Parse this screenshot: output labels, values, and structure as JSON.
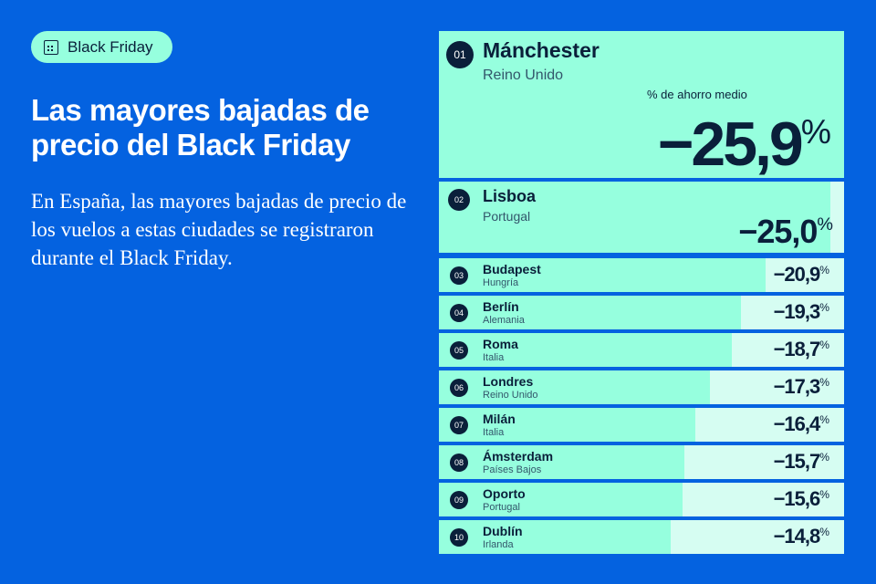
{
  "tag": {
    "label": "Black Friday",
    "icon": "calendar-icon"
  },
  "title": "Las mayores bajadas de precio del Black Friday",
  "description": "En España, las mayores bajadas de precio de los vuelos a estas ciudades se registraron durante el Black Friday.",
  "colors": {
    "background": "#0462e0",
    "bar": "#96ffde",
    "track": "#d6fdf2",
    "text": "#0a1f3a"
  },
  "chart_data": {
    "type": "bar",
    "orientation": "horizontal",
    "ylabel": "% de ahorro medio",
    "unit": "%",
    "categories": [
      "Mánchester",
      "Lisboa",
      "Budapest",
      "Berlín",
      "Roma",
      "Londres",
      "Milán",
      "Ámsterdam",
      "Oporto",
      "Dublín"
    ],
    "countries": [
      "Reino Unido",
      "Portugal",
      "Hungría",
      "Alemania",
      "Italia",
      "Reino Unido",
      "Italia",
      "Países Bajos",
      "Portugal",
      "Irlanda"
    ],
    "ranks": [
      "01",
      "02",
      "03",
      "04",
      "05",
      "06",
      "07",
      "08",
      "09",
      "10"
    ],
    "labels": [
      "−25,9",
      "−25,0",
      "−20,9",
      "−19,3",
      "−18,7",
      "−17,3",
      "−16,4",
      "−15,7",
      "−15,6",
      "−14,8"
    ],
    "values": [
      -25.9,
      -25.0,
      -20.9,
      -19.3,
      -18.7,
      -17.3,
      -16.4,
      -15.7,
      -15.6,
      -14.8
    ]
  }
}
